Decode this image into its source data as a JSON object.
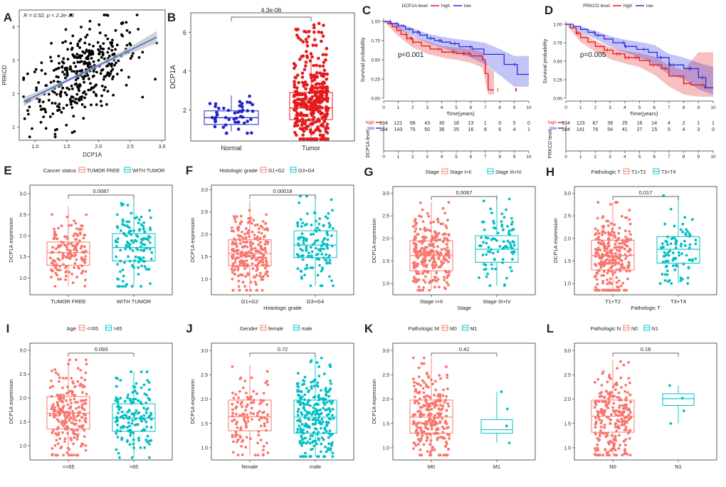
{
  "colors": {
    "salmon": "#F8766D",
    "teal": "#00BFC4",
    "red": "#E41A1C",
    "blue": "#2B2BE0",
    "regline": "#3A6FD8",
    "grey": "#BEBEBE"
  },
  "panelA": {
    "letter": "A",
    "stats": "R = 0.52, p < 2.2e-16",
    "chart_data": {
      "type": "scatter",
      "xlabel": "DCP1A",
      "ylabel": "PRKCD",
      "xlim": [
        0.75,
        3.05
      ],
      "ylim": [
        0.6,
        4.5
      ],
      "xticks": [
        "1.0",
        "1.5",
        "2.0",
        "2.5",
        "3.0"
      ],
      "yticks": [
        "1",
        "2",
        "3",
        "4"
      ],
      "regression": {
        "intercept": 1.0,
        "slope": 0.92
      },
      "n_points": 370
    }
  },
  "panelB": {
    "letter": "B",
    "pvalue": "4.3e-06",
    "chart_data": {
      "type": "box",
      "ylabel": "DCP1A",
      "ylim": [
        0.4,
        7.0
      ],
      "yticks": [
        "2",
        "4",
        "6"
      ],
      "groups": [
        {
          "name": "Normal",
          "q1": 1.25,
          "median": 1.6,
          "q3": 1.95,
          "lo": 0.9,
          "hi": 2.75,
          "n": 50
        },
        {
          "name": "Tumor",
          "q1": 1.5,
          "median": 2.1,
          "q3": 2.9,
          "lo": 0.6,
          "hi": 4.9,
          "n": 370
        }
      ]
    }
  },
  "panelC": {
    "letter": "C",
    "legend_title": "DCP1A level",
    "legend_high": "high",
    "legend_low": "low",
    "pvalue": "p<0.001",
    "table_title": "DCP1A level",
    "chart_data": {
      "type": "line",
      "xlabel": "Time(years)",
      "ylabel": "Survival probability",
      "xlim": [
        0,
        10
      ],
      "ylim": [
        0,
        1
      ],
      "xticks": [
        "0",
        "1",
        "2",
        "3",
        "4",
        "5",
        "6",
        "7",
        "8",
        "9",
        "10"
      ],
      "yticks": [
        "0.00",
        "0.25",
        "0.50",
        "0.75",
        "1.00"
      ],
      "series": [
        {
          "name": "high",
          "steps": [
            [
              0,
              1
            ],
            [
              0.3,
              0.97
            ],
            [
              0.6,
              0.93
            ],
            [
              0.9,
              0.88
            ],
            [
              1.2,
              0.83
            ],
            [
              1.6,
              0.78
            ],
            [
              2,
              0.73
            ],
            [
              2.6,
              0.68
            ],
            [
              3.2,
              0.64
            ],
            [
              4,
              0.6
            ],
            [
              5,
              0.58
            ],
            [
              6,
              0.55
            ],
            [
              6.8,
              0.5
            ],
            [
              7,
              0.32
            ],
            [
              7.2,
              0.11
            ],
            [
              7.6,
              0.11
            ]
          ],
          "band": [
            [
              0,
              1,
              1
            ],
            [
              1,
              0.81,
              0.94
            ],
            [
              2,
              0.66,
              0.8
            ],
            [
              3,
              0.58,
              0.74
            ],
            [
              4,
              0.53,
              0.68
            ],
            [
              5,
              0.5,
              0.66
            ],
            [
              6,
              0.46,
              0.64
            ],
            [
              6.8,
              0.4,
              0.6
            ],
            [
              7.2,
              0.05,
              0.4
            ],
            [
              7.6,
              0.05,
              0.35
            ]
          ]
        },
        {
          "name": "low",
          "steps": [
            [
              0,
              1
            ],
            [
              0.5,
              0.97
            ],
            [
              1,
              0.94
            ],
            [
              1.5,
              0.9
            ],
            [
              2,
              0.86
            ],
            [
              2.5,
              0.82
            ],
            [
              3,
              0.78
            ],
            [
              3.5,
              0.75
            ],
            [
              4,
              0.73
            ],
            [
              4.6,
              0.71
            ],
            [
              5.2,
              0.67
            ],
            [
              6.1,
              0.64
            ],
            [
              6.9,
              0.57
            ],
            [
              8.3,
              0.44
            ],
            [
              9.2,
              0.31
            ],
            [
              10,
              0.31
            ]
          ],
          "band": [
            [
              0,
              1,
              1
            ],
            [
              1,
              0.9,
              0.98
            ],
            [
              2,
              0.81,
              0.91
            ],
            [
              3,
              0.72,
              0.84
            ],
            [
              4,
              0.66,
              0.8
            ],
            [
              5,
              0.59,
              0.77
            ],
            [
              6,
              0.53,
              0.75
            ],
            [
              7,
              0.44,
              0.72
            ],
            [
              8,
              0.3,
              0.64
            ],
            [
              9,
              0.15,
              0.55
            ],
            [
              10,
              0.15,
              0.55
            ]
          ]
        }
      ],
      "risk_table": {
        "high": [
          "184",
          "121",
          "68",
          "43",
          "30",
          "18",
          "13",
          "1",
          "0",
          "0",
          "0"
        ],
        "low": [
          "184",
          "143",
          "75",
          "50",
          "36",
          "25",
          "16",
          "8",
          "6",
          "4",
          "1"
        ]
      }
    }
  },
  "panelD": {
    "letter": "D",
    "legend_title": "PRKCD level",
    "legend_high": "high",
    "legend_low": "low",
    "pvalue": "p=0.005",
    "table_title": "PRKCD level",
    "chart_data": {
      "type": "line",
      "xlabel": "Time(years)",
      "ylabel": "Survival probability",
      "xlim": [
        0,
        10
      ],
      "ylim": [
        0,
        1
      ],
      "xticks": [
        "0",
        "1",
        "2",
        "3",
        "4",
        "5",
        "6",
        "7",
        "8",
        "9",
        "10"
      ],
      "yticks": [
        "0.00",
        "0.25",
        "0.50",
        "0.75",
        "1.00"
      ],
      "series": [
        {
          "name": "high",
          "steps": [
            [
              0,
              1
            ],
            [
              0.3,
              0.95
            ],
            [
              0.7,
              0.88
            ],
            [
              1,
              0.82
            ],
            [
              1.5,
              0.76
            ],
            [
              2,
              0.7
            ],
            [
              2.6,
              0.65
            ],
            [
              3.2,
              0.6
            ],
            [
              4,
              0.55
            ],
            [
              5,
              0.51
            ],
            [
              5.7,
              0.45
            ],
            [
              6.5,
              0.4
            ],
            [
              7,
              0.3
            ],
            [
              8,
              0.2
            ],
            [
              8.5,
              0.18
            ],
            [
              9.4,
              0.14
            ],
            [
              10,
              0.14
            ]
          ],
          "band": [
            [
              0,
              1,
              1
            ],
            [
              1,
              0.76,
              0.89
            ],
            [
              2,
              0.63,
              0.78
            ],
            [
              3,
              0.53,
              0.69
            ],
            [
              4,
              0.47,
              0.64
            ],
            [
              5,
              0.42,
              0.61
            ],
            [
              6,
              0.32,
              0.56
            ],
            [
              7,
              0.16,
              0.45
            ],
            [
              8,
              0.05,
              0.38
            ],
            [
              9,
              0.02,
              0.62
            ],
            [
              10,
              0.02,
              0.62
            ]
          ]
        },
        {
          "name": "low",
          "steps": [
            [
              0,
              1
            ],
            [
              0.5,
              0.97
            ],
            [
              1,
              0.93
            ],
            [
              1.5,
              0.89
            ],
            [
              2,
              0.85
            ],
            [
              2.6,
              0.8
            ],
            [
              3.2,
              0.75
            ],
            [
              4,
              0.7
            ],
            [
              4.8,
              0.66
            ],
            [
              5.6,
              0.62
            ],
            [
              6.2,
              0.55
            ],
            [
              7,
              0.45
            ],
            [
              8,
              0.4
            ],
            [
              9,
              0.28
            ],
            [
              9.5,
              0.14
            ],
            [
              10,
              0.14
            ]
          ],
          "band": [
            [
              0,
              1,
              1
            ],
            [
              1,
              0.89,
              0.97
            ],
            [
              2,
              0.8,
              0.91
            ],
            [
              3,
              0.7,
              0.84
            ],
            [
              4,
              0.62,
              0.79
            ],
            [
              5,
              0.55,
              0.76
            ],
            [
              6,
              0.46,
              0.72
            ],
            [
              7,
              0.32,
              0.6
            ],
            [
              8,
              0.26,
              0.55
            ],
            [
              9,
              0.12,
              0.48
            ],
            [
              10,
              0.05,
              0.42
            ]
          ]
        }
      ],
      "risk_table": {
        "high": [
          "184",
          "123",
          "67",
          "39",
          "25",
          "16",
          "14",
          "4",
          "2",
          "1",
          "1"
        ],
        "low": [
          "184",
          "141",
          "76",
          "54",
          "41",
          "27",
          "15",
          "5",
          "4",
          "3",
          "0"
        ]
      }
    }
  },
  "boxpanels": [
    {
      "letter": "E",
      "legend_title": "Cancer status",
      "groups": [
        "TUMOR FREE",
        "WITH TUMOR"
      ],
      "pvalue": "0.0087",
      "xlabel": "",
      "ylabel": "DCP1A expression",
      "chart_data": {
        "type": "box",
        "ylim": [
          0.6,
          3.2
        ],
        "yticks": [
          "1.0",
          "1.5",
          "2.0",
          "2.5",
          "3.0"
        ],
        "stats": [
          {
            "q1": 1.3,
            "median": 1.6,
            "q3": 1.85,
            "lo": 0.8,
            "hi": 2.7,
            "n": 150
          },
          {
            "q1": 1.4,
            "median": 1.72,
            "q3": 2.05,
            "lo": 0.8,
            "hi": 2.9,
            "n": 130
          }
        ]
      }
    },
    {
      "letter": "F",
      "legend_title": "Histologic grade",
      "groups": [
        "G1+G2",
        "G3+G4"
      ],
      "pvalue": "0.00018",
      "xlabel": "Histologic grade",
      "ylabel": "DCP1A expression",
      "chart_data": {
        "type": "box",
        "ylim": [
          0.65,
          3.1
        ],
        "yticks": [
          "1.0",
          "1.5",
          "2.0",
          "2.5",
          "3.0"
        ],
        "stats": [
          {
            "q1": 1.3,
            "median": 1.57,
            "q3": 1.88,
            "lo": 0.75,
            "hi": 2.75,
            "n": 250
          },
          {
            "q1": 1.48,
            "median": 1.76,
            "q3": 2.08,
            "lo": 0.85,
            "hi": 2.85,
            "n": 130
          }
        ]
      }
    },
    {
      "letter": "G",
      "legend_title": "Stage",
      "groups": [
        "Stage I+II",
        "Stage III+IV"
      ],
      "pvalue": "0.0067",
      "xlabel": "Stage",
      "ylabel": "DCP1A expression",
      "chart_data": {
        "type": "box",
        "ylim": [
          0.75,
          3.15
        ],
        "yticks": [
          "1.0",
          "1.5",
          "2.0",
          "2.5",
          "3.0"
        ],
        "stats": [
          {
            "q1": 1.28,
            "median": 1.62,
            "q3": 1.95,
            "lo": 0.85,
            "hi": 2.8,
            "n": 270
          },
          {
            "q1": 1.47,
            "median": 1.76,
            "q3": 2.06,
            "lo": 0.95,
            "hi": 2.95,
            "n": 90
          }
        ]
      }
    },
    {
      "letter": "H",
      "legend_title": "Pathologic T",
      "groups": [
        "T1+T2",
        "T3+T4"
      ],
      "pvalue": "0.017",
      "xlabel": "Pathologic T",
      "ylabel": "DCP1A expression",
      "chart_data": {
        "type": "box",
        "ylim": [
          0.75,
          3.15
        ],
        "yticks": [
          "1.0",
          "1.5",
          "2.0",
          "2.5",
          "3.0"
        ],
        "stats": [
          {
            "q1": 1.3,
            "median": 1.62,
            "q3": 1.96,
            "lo": 0.85,
            "hi": 2.8,
            "n": 280
          },
          {
            "q1": 1.45,
            "median": 1.76,
            "q3": 2.04,
            "lo": 1.0,
            "hi": 2.95,
            "n": 90
          }
        ]
      }
    },
    {
      "letter": "I",
      "legend_title": "Age",
      "groups": [
        "<=65",
        ">65"
      ],
      "pvalue": "0.093",
      "xlabel": "",
      "ylabel": "DCP1A expression",
      "chart_data": {
        "type": "box",
        "ylim": [
          0.7,
          3.15
        ],
        "yticks": [
          "1.0",
          "1.5",
          "2.0",
          "2.5",
          "3.0"
        ],
        "stats": [
          {
            "q1": 1.35,
            "median": 1.68,
            "q3": 2.03,
            "lo": 0.8,
            "hi": 2.8,
            "n": 220
          },
          {
            "q1": 1.3,
            "median": 1.58,
            "q3": 1.88,
            "lo": 0.75,
            "hi": 2.55,
            "n": 150
          }
        ]
      }
    },
    {
      "letter": "J",
      "legend_title": "Gender",
      "groups": [
        "female",
        "male"
      ],
      "pvalue": "0.72",
      "xlabel": "",
      "ylabel": "DCP1A expression",
      "chart_data": {
        "type": "box",
        "ylim": [
          0.75,
          3.15
        ],
        "yticks": [
          "1.0",
          "1.5",
          "2.0",
          "2.5",
          "3.0"
        ],
        "stats": [
          {
            "q1": 1.35,
            "median": 1.64,
            "q3": 1.98,
            "lo": 0.85,
            "hi": 2.7,
            "n": 120
          },
          {
            "q1": 1.3,
            "median": 1.63,
            "q3": 1.98,
            "lo": 0.82,
            "hi": 2.9,
            "n": 250
          }
        ]
      }
    },
    {
      "letter": "K",
      "legend_title": "Pathologic M",
      "groups": [
        "M0",
        "M1"
      ],
      "pvalue": "0.42",
      "xlabel": "",
      "ylabel": "DCP1A expression",
      "chart_data": {
        "type": "box",
        "ylim": [
          0.75,
          3.15
        ],
        "yticks": [
          "1.0",
          "1.5",
          "2.0",
          "2.5",
          "3.0"
        ],
        "stats": [
          {
            "q1": 1.3,
            "median": 1.63,
            "q3": 1.98,
            "lo": 0.85,
            "hi": 2.85,
            "n": 260
          },
          {
            "q1": 1.3,
            "median": 1.37,
            "q3": 1.58,
            "lo": 1.1,
            "hi": 2.15,
            "n": 4
          }
        ]
      }
    },
    {
      "letter": "L",
      "legend_title": "Pathologic N",
      "groups": [
        "N0",
        "N1"
      ],
      "pvalue": "0.18",
      "xlabel": "",
      "ylabel": "",
      "chart_data": {
        "type": "box",
        "ylim": [
          0.75,
          3.15
        ],
        "yticks": [
          "1.0",
          "1.5",
          "2.0",
          "2.5",
          "3.0"
        ],
        "stats": [
          {
            "q1": 1.32,
            "median": 1.65,
            "q3": 1.98,
            "lo": 0.85,
            "hi": 2.8,
            "n": 240
          },
          {
            "q1": 1.87,
            "median": 2.01,
            "q3": 2.11,
            "lo": 1.5,
            "hi": 2.28,
            "n": 4
          }
        ]
      }
    }
  ]
}
